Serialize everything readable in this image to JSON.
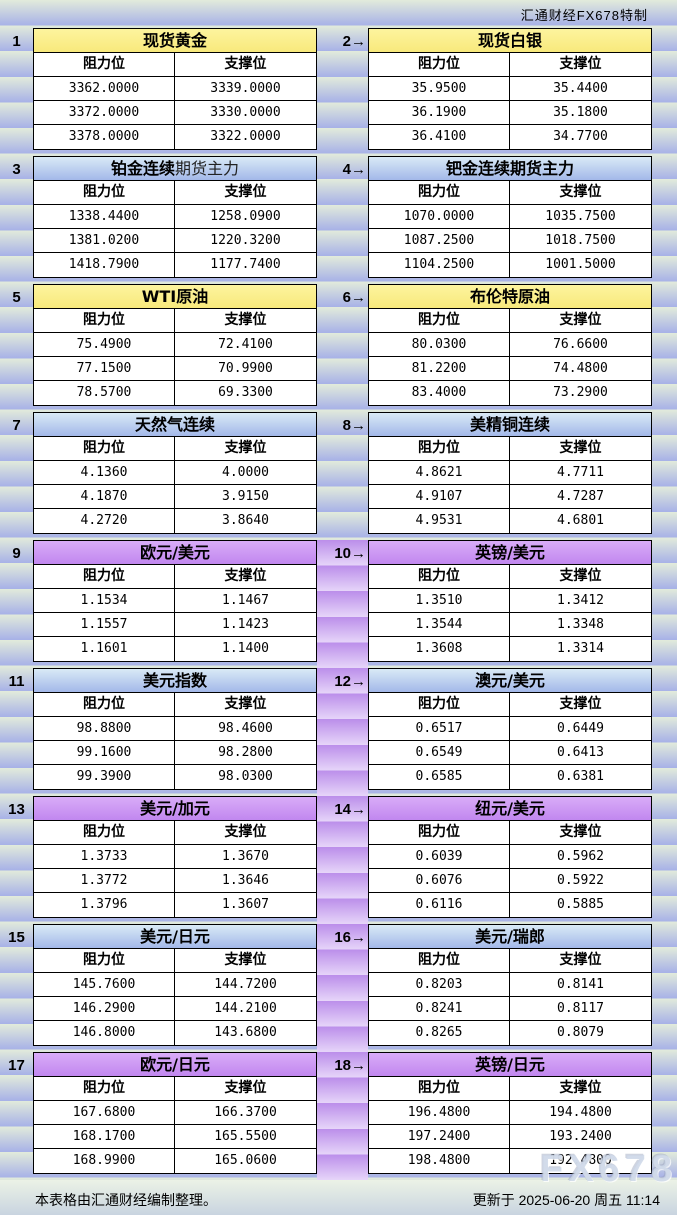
{
  "page": {
    "brand_header": "汇通财经FX678特制",
    "watermark": "FX678",
    "footer": {
      "left": "本表格由汇通财经编制整理。",
      "right": "更新于 2025-06-20 周五 11:14"
    }
  },
  "table_headers": {
    "resistance": "阻力位",
    "support": "支撑位"
  },
  "title_colors": {
    "yellow": [
      "#fdf49e",
      "#f8e97c"
    ],
    "blue": [
      "#d9eaf6",
      "#a3b8e9"
    ],
    "purple": [
      "#d9acf8",
      "#c187ef"
    ]
  },
  "colors": {
    "gutter_band_top": "#bb8eea",
    "gutter_band_bottom": "#e6d5f9",
    "stripe_band_top": "#e2ebdb",
    "stripe_band_bottom": "#a7b1e7"
  },
  "rows": [
    {
      "gutter_purple": false,
      "left": {
        "num": "1",
        "title": "现货黄金",
        "color": "yellow",
        "values": [
          [
            "3362.0000",
            "3339.0000"
          ],
          [
            "3372.0000",
            "3330.0000"
          ],
          [
            "3378.0000",
            "3322.0000"
          ]
        ]
      },
      "right": {
        "num": "2→",
        "title": "现货白银",
        "color": "yellow",
        "values": [
          [
            "35.9500",
            "35.4400"
          ],
          [
            "36.1900",
            "35.1800"
          ],
          [
            "36.4100",
            "34.7700"
          ]
        ]
      }
    },
    {
      "gutter_purple": false,
      "left": {
        "num": "3",
        "title": "铂金连续",
        "title2": "期货主力",
        "color": "blue",
        "values": [
          [
            "1338.4400",
            "1258.0900"
          ],
          [
            "1381.0200",
            "1220.3200"
          ],
          [
            "1418.7900",
            "1177.7400"
          ]
        ]
      },
      "right": {
        "num": "4→",
        "title": "钯金连续期货主力",
        "color": "blue",
        "values": [
          [
            "1070.0000",
            "1035.7500"
          ],
          [
            "1087.2500",
            "1018.7500"
          ],
          [
            "1104.2500",
            "1001.5000"
          ]
        ]
      }
    },
    {
      "gutter_purple": false,
      "left": {
        "num": "5",
        "title": "WTI原油",
        "color": "yellow",
        "values": [
          [
            "75.4900",
            "72.4100"
          ],
          [
            "77.1500",
            "70.9900"
          ],
          [
            "78.5700",
            "69.3300"
          ]
        ]
      },
      "right": {
        "num": "6→",
        "title": "布伦特原油",
        "color": "yellow",
        "values": [
          [
            "80.0300",
            "76.6600"
          ],
          [
            "81.2200",
            "74.4800"
          ],
          [
            "83.4000",
            "73.2900"
          ]
        ]
      }
    },
    {
      "gutter_purple": false,
      "left": {
        "num": "7",
        "title": "天然气连续",
        "color": "blue",
        "values": [
          [
            "4.1360",
            "4.0000"
          ],
          [
            "4.1870",
            "3.9150"
          ],
          [
            "4.2720",
            "3.8640"
          ]
        ]
      },
      "right": {
        "num": "8→",
        "title": "美精铜连续",
        "color": "blue",
        "values": [
          [
            "4.8621",
            "4.7711"
          ],
          [
            "4.9107",
            "4.7287"
          ],
          [
            "4.9531",
            "4.6801"
          ]
        ]
      }
    },
    {
      "gutter_purple": true,
      "left": {
        "num": "9",
        "title": "欧元/美元",
        "color": "purple",
        "values": [
          [
            "1.1534",
            "1.1467"
          ],
          [
            "1.1557",
            "1.1423"
          ],
          [
            "1.1601",
            "1.1400"
          ]
        ]
      },
      "right": {
        "num": "10→",
        "title": "英镑/美元",
        "color": "purple",
        "values": [
          [
            "1.3510",
            "1.3412"
          ],
          [
            "1.3544",
            "1.3348"
          ],
          [
            "1.3608",
            "1.3314"
          ]
        ]
      }
    },
    {
      "gutter_purple": true,
      "left": {
        "num": "11",
        "title": "美元指数",
        "color": "blue",
        "values": [
          [
            "98.8800",
            "98.4600"
          ],
          [
            "99.1600",
            "98.2800"
          ],
          [
            "99.3900",
            "98.0300"
          ]
        ]
      },
      "right": {
        "num": "12→",
        "title": "澳元/美元",
        "color": "blue",
        "values": [
          [
            "0.6517",
            "0.6449"
          ],
          [
            "0.6549",
            "0.6413"
          ],
          [
            "0.6585",
            "0.6381"
          ]
        ]
      }
    },
    {
      "gutter_purple": true,
      "left": {
        "num": "13",
        "title": "美元/加元",
        "color": "purple",
        "values": [
          [
            "1.3733",
            "1.3670"
          ],
          [
            "1.3772",
            "1.3646"
          ],
          [
            "1.3796",
            "1.3607"
          ]
        ]
      },
      "right": {
        "num": "14→",
        "title": "纽元/美元",
        "color": "purple",
        "values": [
          [
            "0.6039",
            "0.5962"
          ],
          [
            "0.6076",
            "0.5922"
          ],
          [
            "0.6116",
            "0.5885"
          ]
        ]
      }
    },
    {
      "gutter_purple": true,
      "left": {
        "num": "15",
        "title": "美元/日元",
        "color": "blue",
        "values": [
          [
            "145.7600",
            "144.7200"
          ],
          [
            "146.2900",
            "144.2100"
          ],
          [
            "146.8000",
            "143.6800"
          ]
        ]
      },
      "right": {
        "num": "16→",
        "title": "美元/瑞郎",
        "color": "blue",
        "values": [
          [
            "0.8203",
            "0.8141"
          ],
          [
            "0.8241",
            "0.8117"
          ],
          [
            "0.8265",
            "0.8079"
          ]
        ]
      }
    },
    {
      "gutter_purple": true,
      "left": {
        "num": "17",
        "title": "欧元/日元",
        "color": "purple",
        "values": [
          [
            "167.6800",
            "166.3700"
          ],
          [
            "168.1700",
            "165.5500"
          ],
          [
            "168.9900",
            "165.0600"
          ]
        ]
      },
      "right": {
        "num": "18→",
        "title": "英镑/日元",
        "color": "purple",
        "values": [
          [
            "196.4800",
            "194.4800"
          ],
          [
            "197.2400",
            "193.2400"
          ],
          [
            "198.4800",
            "192.4800"
          ]
        ]
      }
    }
  ]
}
